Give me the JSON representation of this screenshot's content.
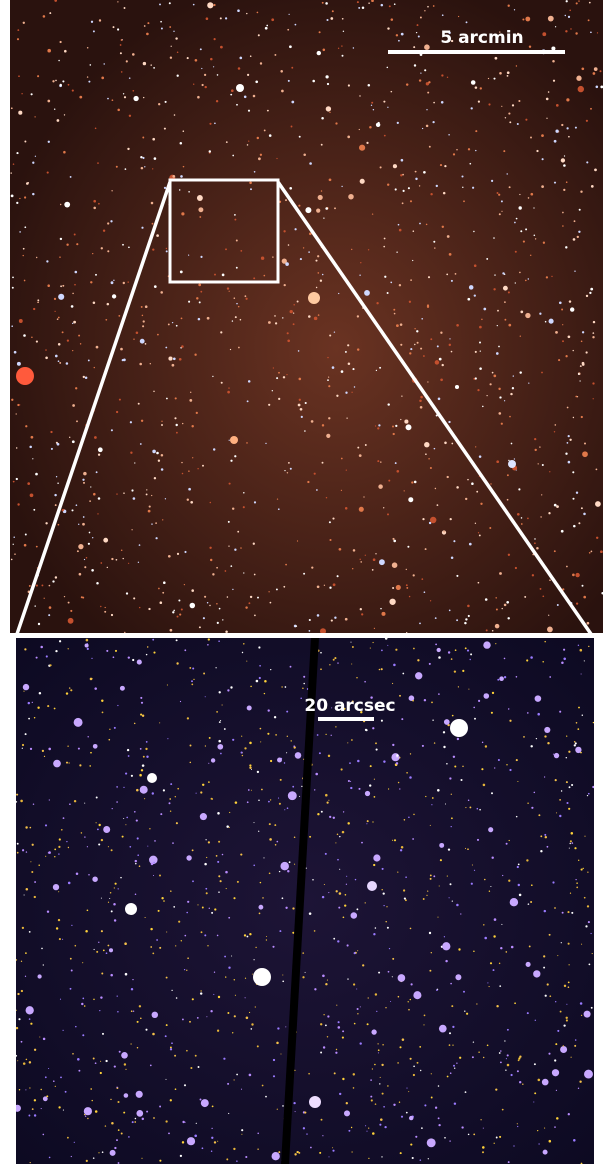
{
  "wide_field": {
    "scale_label": "5 arcmin"
  },
  "zoom_field": {
    "scale_label": "20 arcsec"
  }
}
